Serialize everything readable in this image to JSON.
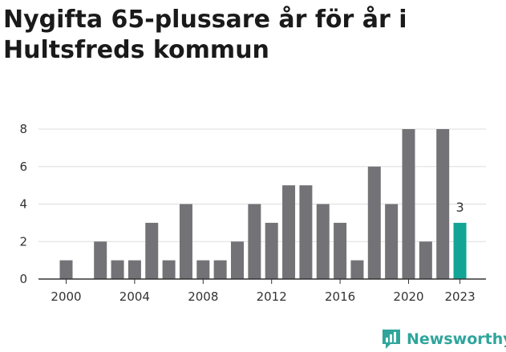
{
  "chart_data": {
    "type": "bar",
    "title_line1": "Nygifta 65-plussare år för år i",
    "title_line2": "Hultsfreds kommun",
    "xlabel": "",
    "ylabel": "",
    "categories": [
      "2000",
      "2001",
      "2002",
      "2003",
      "2004",
      "2005",
      "2006",
      "2007",
      "2008",
      "2009",
      "2010",
      "2011",
      "2012",
      "2013",
      "2014",
      "2015",
      "2016",
      "2017",
      "2018",
      "2019",
      "2020",
      "2021",
      "2022",
      "2023"
    ],
    "values": [
      1,
      0,
      2,
      1,
      1,
      3,
      1,
      4,
      1,
      1,
      2,
      4,
      3,
      5,
      5,
      4,
      3,
      1,
      6,
      4,
      8,
      2,
      8,
      3
    ],
    "highlight_category": "2023",
    "highlight_label": "3",
    "x_tick_labels": [
      "2000",
      "2004",
      "2008",
      "2012",
      "2016",
      "2020",
      "2023"
    ],
    "y_ticks": [
      0,
      2,
      4,
      6,
      8
    ],
    "ylim": [
      0,
      8
    ],
    "grid": true,
    "colors": {
      "bar": "#737276",
      "highlight": "#12a596",
      "grid": "#dddddd",
      "axis": "#333333"
    }
  },
  "brand": {
    "name": "Newsworthy",
    "icon": "bar-chart-speech-bubble-icon",
    "color": "#2fa59c"
  }
}
